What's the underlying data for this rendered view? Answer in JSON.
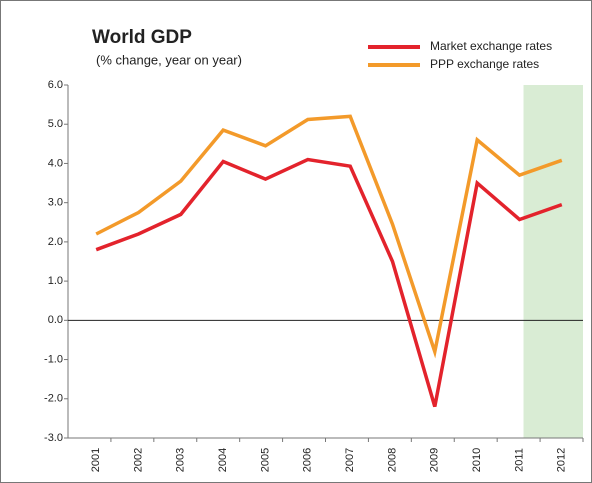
{
  "chart_data": {
    "type": "line",
    "title": "World GDP",
    "subtitle": "(% change, year on year)",
    "categories": [
      "2001",
      "2002",
      "2003",
      "2004",
      "2005",
      "2006",
      "2007",
      "2008",
      "2009",
      "2010",
      "2011",
      "2012"
    ],
    "series": [
      {
        "name": "Market exchange rates",
        "color": "#e3232c",
        "values": [
          1.8,
          2.2,
          2.7,
          4.05,
          3.6,
          4.1,
          3.93,
          1.5,
          -2.2,
          3.5,
          2.57,
          2.95
        ]
      },
      {
        "name": "PPP exchange rates",
        "color": "#f39a2a",
        "values": [
          2.2,
          2.75,
          3.55,
          4.85,
          4.45,
          5.12,
          5.2,
          2.45,
          -0.8,
          4.6,
          3.7,
          4.08
        ]
      }
    ],
    "ylim": [
      -3,
      6
    ],
    "yticks": [
      {
        "value": -3,
        "label": "-3.0"
      },
      {
        "value": -2,
        "label": "-2.0"
      },
      {
        "value": -1,
        "label": "-1.0"
      },
      {
        "value": 0,
        "label": "0.0"
      },
      {
        "value": 1,
        "label": "1.0"
      },
      {
        "value": 2,
        "label": "2.0"
      },
      {
        "value": 3,
        "label": "3.0"
      },
      {
        "value": 4,
        "label": "4.0"
      },
      {
        "value": 5,
        "label": "5.0"
      },
      {
        "value": 6,
        "label": "6.0"
      }
    ],
    "highlight_categories": [
      "2011",
      "2012"
    ],
    "highlight_color": "#d9ecd4"
  }
}
